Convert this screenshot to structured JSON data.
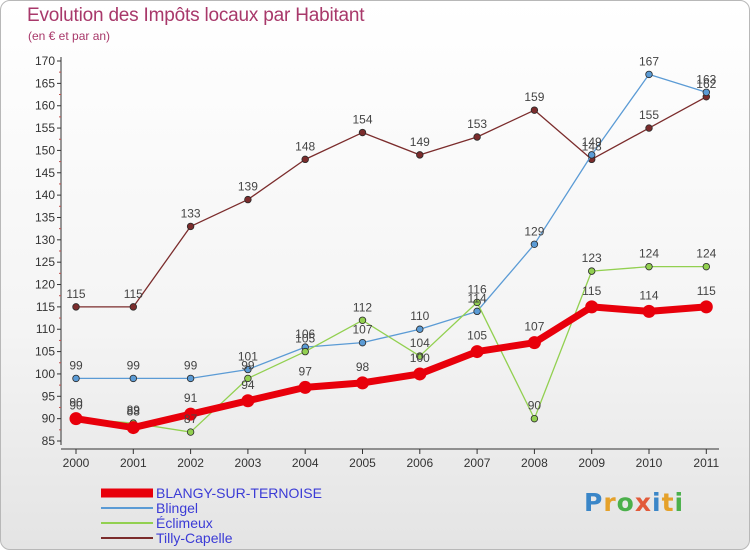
{
  "header": {
    "title": "Evolution des Impôts locaux par Habitant",
    "subtitle": "(en € et par an)"
  },
  "logo": {
    "text": "Proxiti"
  },
  "chart_data": {
    "type": "line",
    "title": "Evolution des Impôts locaux par Habitant",
    "subtitle": "(en € et par an)",
    "xlabel": "",
    "ylabel": "",
    "ylim": [
      85,
      170
    ],
    "y_ticks": [
      85,
      90,
      95,
      100,
      105,
      110,
      115,
      120,
      125,
      130,
      135,
      140,
      145,
      150,
      155,
      160,
      165,
      170
    ],
    "categories": [
      "2000",
      "2001",
      "2002",
      "2003",
      "2004",
      "2005",
      "2006",
      "2007",
      "2008",
      "2009",
      "2010",
      "2011"
    ],
    "grid": false,
    "legend_position": "bottom-left",
    "series": [
      {
        "name": "BLANGY-SUR-TERNOISE",
        "color": "#e8000b",
        "values": [
          90,
          88,
          91,
          94,
          97,
          98,
          100,
          105,
          107,
          115,
          114,
          115
        ]
      },
      {
        "name": "Blingel",
        "color": "#5b9bd5",
        "values": [
          99,
          99,
          99,
          101,
          106,
          107,
          110,
          114,
          129,
          149,
          167,
          163
        ]
      },
      {
        "name": "Éclimeux",
        "color": "#92d050",
        "values": [
          90,
          89,
          87,
          99,
          105,
          112,
          104,
          116,
          90,
          123,
          124,
          124
        ]
      },
      {
        "name": "Tilly-Capelle",
        "color": "#7b2c2c",
        "values": [
          115,
          115,
          133,
          139,
          148,
          154,
          149,
          153,
          159,
          148,
          155,
          162
        ]
      }
    ]
  }
}
